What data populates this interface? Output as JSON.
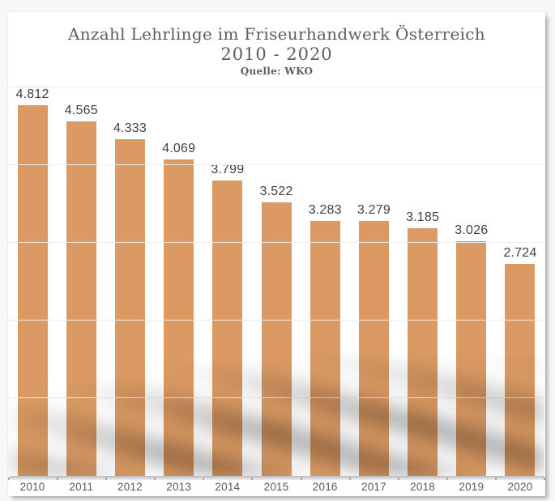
{
  "chart": {
    "title": "Anzahl Lehrlinge im Friseurhandwerk Österreich",
    "subtitle": "2010 - 2020",
    "source": "Quelle: WKO"
  },
  "chart_data": {
    "type": "bar",
    "title": "Anzahl Lehrlinge im Friseurhandwerk Österreich",
    "subtitle": "2010 - 2020",
    "source_note": "Quelle: WKO",
    "categories": [
      "2010",
      "2011",
      "2012",
      "2013",
      "2014",
      "2015",
      "2016",
      "2017",
      "2018",
      "2019",
      "2020"
    ],
    "values": [
      4812,
      4565,
      4333,
      4069,
      3799,
      3522,
      3283,
      3279,
      3185,
      3026,
      2724
    ],
    "value_labels": [
      "4.812",
      "4.565",
      "4.333",
      "4.069",
      "3.799",
      "3.522",
      "3.283",
      "3.279",
      "3.185",
      "3.026",
      "2.724"
    ],
    "xlabel": "",
    "ylabel": "",
    "ylim": [
      0,
      5000
    ],
    "gridline_values": [
      1000,
      2000,
      3000,
      4000,
      5000
    ],
    "grid": "horizontal",
    "legend": "none",
    "y_axis_labels_visible": false,
    "colors": {
      "bar": "#DB9A63",
      "value_label": "#404040",
      "axis_label": "#595959",
      "title": "#5e5e5e",
      "gridline": "#ededed",
      "page_background": "#f7f7f7",
      "card_background": "#ffffff"
    }
  }
}
